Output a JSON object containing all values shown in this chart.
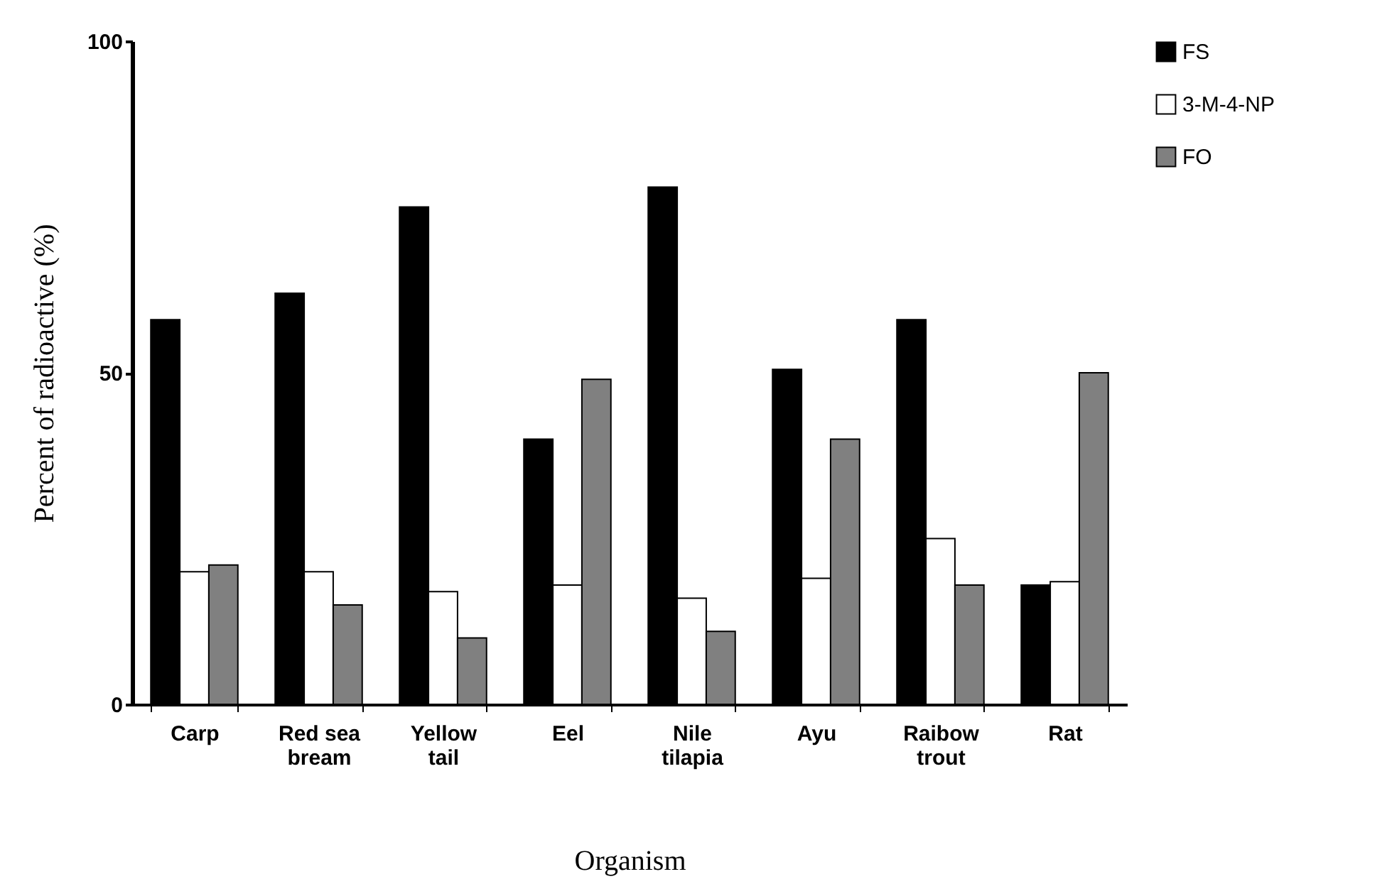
{
  "chart_data": {
    "type": "bar",
    "xlabel": "Organism",
    "ylabel": "Percent of radioactive (%)",
    "categories": [
      "Carp",
      "Red sea bream",
      "Yellow tail",
      "Eel",
      "Nile tilapia",
      "Ayu",
      "Raibow trout",
      "Rat"
    ],
    "series": [
      {
        "name": "FS",
        "color": "#000000",
        "values": [
          58,
          62,
          75,
          40,
          78,
          50.5,
          58,
          18
        ]
      },
      {
        "name": "3-M-4-NP",
        "color": "#ffffff",
        "values": [
          20,
          20,
          17,
          18,
          16,
          19,
          25,
          18.5
        ]
      },
      {
        "name": "FO",
        "color": "#808080",
        "values": [
          21,
          15,
          10,
          49,
          11,
          40,
          18,
          50
        ]
      }
    ],
    "ylim": [
      0,
      100
    ],
    "yticks": [
      0,
      50,
      100
    ],
    "grid": false,
    "legend": "right"
  }
}
